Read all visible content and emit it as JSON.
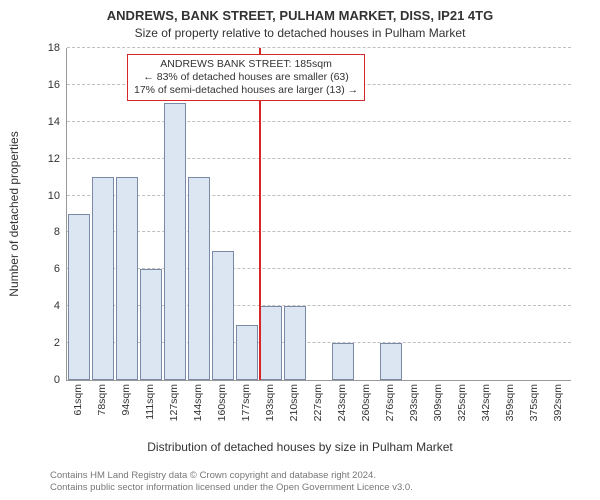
{
  "chart": {
    "type": "histogram",
    "title_main": "ANDREWS, BANK STREET, PULHAM MARKET, DISS, IP21 4TG",
    "title_sub": "Size of property relative to detached houses in Pulham Market",
    "y_label": "Number of detached properties",
    "x_label": "Distribution of detached houses by size in Pulham Market",
    "background_color": "#ffffff",
    "grid_color": "#bfbfbf",
    "bar_fill": "#dce6f2",
    "bar_border": "#7a8aa5",
    "refline_color": "#d62728",
    "annotation_border": "#d62728",
    "ylim": [
      0,
      18
    ],
    "ytick_step": 2,
    "x_categories": [
      "61sqm",
      "78sqm",
      "94sqm",
      "111sqm",
      "127sqm",
      "144sqm",
      "160sqm",
      "177sqm",
      "193sqm",
      "210sqm",
      "227sqm",
      "243sqm",
      "260sqm",
      "276sqm",
      "293sqm",
      "309sqm",
      "325sqm",
      "342sqm",
      "359sqm",
      "375sqm",
      "392sqm"
    ],
    "bars": [
      {
        "i": 0,
        "h": 9
      },
      {
        "i": 1,
        "h": 11
      },
      {
        "i": 2,
        "h": 11
      },
      {
        "i": 3,
        "h": 6
      },
      {
        "i": 4,
        "h": 15
      },
      {
        "i": 5,
        "h": 11
      },
      {
        "i": 6,
        "h": 7
      },
      {
        "i": 7,
        "h": 3
      },
      {
        "i": 8,
        "h": 4
      },
      {
        "i": 9,
        "h": 4
      },
      {
        "i": 10,
        "h": 0
      },
      {
        "i": 11,
        "h": 2
      },
      {
        "i": 12,
        "h": 0
      },
      {
        "i": 13,
        "h": 2
      },
      {
        "i": 14,
        "h": 0
      },
      {
        "i": 15,
        "h": 0
      },
      {
        "i": 16,
        "h": 0
      },
      {
        "i": 17,
        "h": 0
      },
      {
        "i": 18,
        "h": 0
      },
      {
        "i": 19,
        "h": 0
      },
      {
        "i": 20,
        "h": 0
      }
    ],
    "refline_at": 185,
    "x_domain": [
      53,
      400
    ],
    "annotation": {
      "line1": "ANDREWS BANK STREET: 185sqm",
      "line2": "← 83% of detached houses are smaller (63)",
      "line3": "17% of semi-detached houses are larger (13) →"
    },
    "title_fontsize": 13,
    "subtitle_fontsize": 12,
    "axis_label_fontsize": 12,
    "tick_fontsize": 11,
    "annotation_fontsize": 10.5,
    "footnote_fontsize": 9.5
  },
  "footnote": {
    "line1": "Contains HM Land Registry data © Crown copyright and database right 2024.",
    "line2": "Contains public sector information licensed under the Open Government Licence v3.0."
  }
}
